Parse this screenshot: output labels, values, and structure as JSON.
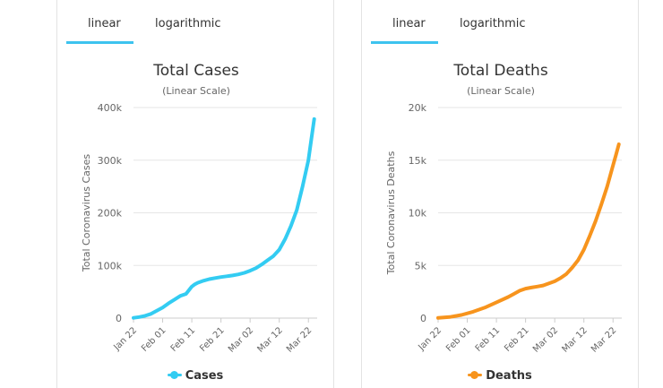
{
  "tabs": [
    "linear",
    "logarithmic"
  ],
  "active_tab": "linear",
  "colors": {
    "accent": "#3dc3ef",
    "cases": "#33ccf2",
    "deaths": "#f7941d"
  },
  "chart_data": [
    {
      "type": "line",
      "title": "Total Cases",
      "subtitle": "(Linear Scale)",
      "ylabel": "Total Coronavirus Cases",
      "xlabel": "",
      "ylim": [
        0,
        400000
      ],
      "yticks": [
        0,
        100000,
        200000,
        300000,
        400000
      ],
      "ytick_labels": [
        "0",
        "100k",
        "200k",
        "300k",
        "400k"
      ],
      "xtick_labels": [
        "Jan 22",
        "Feb 01",
        "Feb 11",
        "Feb 21",
        "Mar 02",
        "Mar 12",
        "Mar 22"
      ],
      "xtick_days": [
        0,
        10,
        20,
        30,
        40,
        50,
        60
      ],
      "x_days_span": 63,
      "series": [
        {
          "name": "Cases",
          "color": "#33ccf2",
          "x": [
            0,
            2,
            4,
            6,
            8,
            10,
            12,
            14,
            16,
            18,
            20,
            21,
            22,
            24,
            26,
            28,
            30,
            32,
            34,
            36,
            38,
            40,
            42,
            44,
            46,
            48,
            50,
            52,
            54,
            56,
            58,
            60,
            61,
            62
          ],
          "y": [
            555,
            2000,
            4500,
            8000,
            14000,
            20000,
            28000,
            35000,
            42000,
            46000,
            60000,
            64000,
            67000,
            71000,
            74000,
            76000,
            78000,
            79500,
            81000,
            83000,
            86000,
            90000,
            95000,
            102000,
            110000,
            118000,
            130000,
            150000,
            175000,
            205000,
            250000,
            300000,
            340000,
            378000
          ]
        }
      ],
      "legend": "Cases"
    },
    {
      "type": "line",
      "title": "Total Deaths",
      "subtitle": "(Linear Scale)",
      "ylabel": "Total Coronavirus Deaths",
      "xlabel": "",
      "ylim": [
        0,
        20000
      ],
      "yticks": [
        0,
        5000,
        10000,
        15000,
        20000
      ],
      "ytick_labels": [
        "0",
        "5k",
        "10k",
        "15k",
        "20k"
      ],
      "xtick_labels": [
        "Jan 22",
        "Feb 01",
        "Feb 11",
        "Feb 21",
        "Mar 02",
        "Mar 12",
        "Mar 22"
      ],
      "xtick_days": [
        0,
        10,
        20,
        30,
        40,
        50,
        60
      ],
      "x_days_span": 63,
      "series": [
        {
          "name": "Deaths",
          "color": "#f7941d",
          "x": [
            0,
            4,
            8,
            12,
            16,
            20,
            24,
            26,
            28,
            30,
            32,
            34,
            36,
            38,
            40,
            42,
            44,
            46,
            48,
            50,
            52,
            54,
            56,
            58,
            60,
            61,
            62
          ],
          "y": [
            17,
            100,
            300,
            600,
            1000,
            1500,
            2000,
            2300,
            2600,
            2800,
            2900,
            3000,
            3100,
            3300,
            3500,
            3800,
            4200,
            4800,
            5500,
            6500,
            7800,
            9200,
            10800,
            12500,
            14500,
            15500,
            16500
          ]
        }
      ],
      "legend": "Deaths"
    }
  ]
}
